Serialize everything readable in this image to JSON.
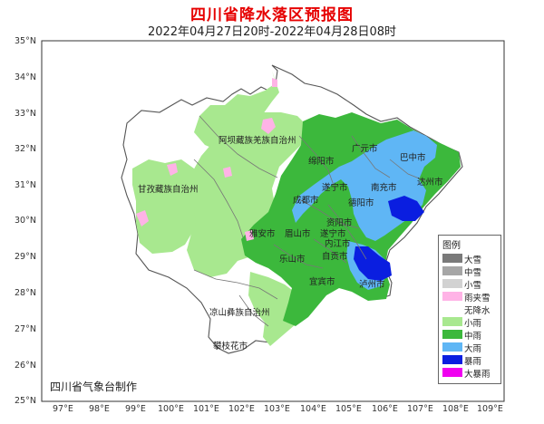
{
  "title": "四川省降水落区预报图",
  "subtitle": "2022年04月27日20时-2022年04月28日08时",
  "credit": "四川省气象台制作",
  "axes": {
    "lat_labels": [
      "35°N",
      "34°N",
      "33°N",
      "32°N",
      "31°N",
      "30°N",
      "29°N",
      "28°N",
      "27°N",
      "26°N",
      "25°N"
    ],
    "lon_labels": [
      "97°E",
      "98°E",
      "99°E",
      "100°E",
      "101°E",
      "102°E",
      "103°E",
      "104°E",
      "105°E",
      "106°E",
      "107°E",
      "108°E",
      "109°E"
    ]
  },
  "regions": [
    {
      "name": "阿坝藏族羌族自治州"
    },
    {
      "name": "甘孜藏族自治州"
    },
    {
      "name": "凉山彝族自治州"
    },
    {
      "name": "攀枝花市"
    },
    {
      "name": "广元市"
    },
    {
      "name": "绵阳市"
    },
    {
      "name": "巴中市"
    },
    {
      "name": "南充市"
    },
    {
      "name": "达州市"
    },
    {
      "name": "遂宁市"
    },
    {
      "name": "成都市"
    },
    {
      "name": "德阳市"
    },
    {
      "name": "遂宁市"
    },
    {
      "name": "资阳市"
    },
    {
      "name": "雅安市"
    },
    {
      "name": "眉山市"
    },
    {
      "name": "内江市"
    },
    {
      "name": "乐山市"
    },
    {
      "name": "自贡市"
    },
    {
      "name": "宜宾市"
    },
    {
      "name": "泸州市"
    }
  ],
  "legend": {
    "title": "图例",
    "items": [
      {
        "label": "大雪",
        "color": "#7a7a7a"
      },
      {
        "label": "中雪",
        "color": "#a6a6a6"
      },
      {
        "label": "小雪",
        "color": "#d2d2d2"
      },
      {
        "label": "雨夹雪",
        "color": "#ffb3e6"
      },
      {
        "label": "无降水",
        "color": "#ffffff"
      },
      {
        "label": "小雨",
        "color": "#a8e88f"
      },
      {
        "label": "中雨",
        "color": "#3cb83c"
      },
      {
        "label": "大雨",
        "color": "#5fb6f5"
      },
      {
        "label": "暴雨",
        "color": "#0a1ee0"
      },
      {
        "label": "大暴雨",
        "color": "#f000f0"
      }
    ]
  }
}
